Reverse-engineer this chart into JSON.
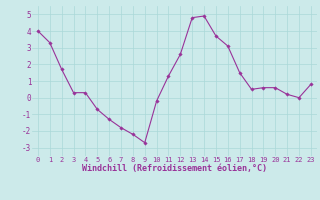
{
  "x": [
    0,
    1,
    2,
    3,
    4,
    5,
    6,
    7,
    8,
    9,
    10,
    11,
    12,
    13,
    14,
    15,
    16,
    17,
    18,
    19,
    20,
    21,
    22,
    23
  ],
  "y": [
    4.0,
    3.3,
    1.7,
    0.3,
    0.3,
    -0.7,
    -1.3,
    -1.8,
    -2.2,
    -2.7,
    -0.2,
    1.3,
    2.6,
    4.8,
    4.9,
    3.7,
    3.1,
    1.5,
    0.5,
    0.6,
    0.6,
    0.2,
    0.0,
    0.8
  ],
  "line_color": "#993399",
  "marker": "D",
  "marker_size": 1.8,
  "line_width": 0.8,
  "xlabel": "Windchill (Refroidissement éolien,°C)",
  "xlabel_fontsize": 6,
  "xlim": [
    -0.5,
    23.5
  ],
  "ylim": [
    -3.5,
    5.5
  ],
  "yticks": [
    -3,
    -2,
    -1,
    0,
    1,
    2,
    3,
    4,
    5
  ],
  "xtick_labels": [
    "0",
    "1",
    "2",
    "3",
    "4",
    "5",
    "6",
    "7",
    "8",
    "9",
    "10",
    "11",
    "12",
    "13",
    "14",
    "15",
    "16",
    "17",
    "18",
    "19",
    "20",
    "21",
    "22",
    "23"
  ],
  "grid_color": "#aad8d8",
  "bg_color": "#cceaea",
  "tick_fontsize": 5.0,
  "ytick_fontsize": 5.5
}
